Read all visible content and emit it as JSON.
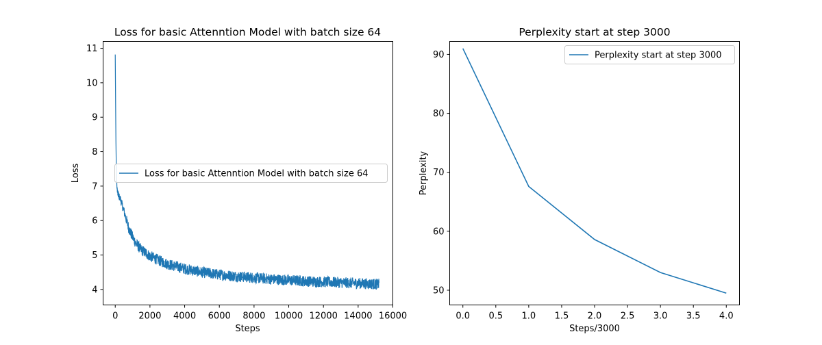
{
  "chart_data": [
    {
      "type": "line",
      "title": "Loss for basic Attenntion Model with batch size 64",
      "xlabel": "Steps",
      "ylabel": "Loss",
      "xlim": [
        -700,
        16000
      ],
      "ylim": [
        3.55,
        11.2
      ],
      "xticks": [
        0,
        2000,
        4000,
        6000,
        8000,
        10000,
        12000,
        14000,
        16000
      ],
      "yticks": [
        4,
        5,
        6,
        7,
        8,
        9,
        10,
        11
      ],
      "grid": false,
      "legend_position": "center-right",
      "color": "#1f77b4",
      "series": [
        {
          "name": "Loss for basic Attenntion Model with batch size 64",
          "x": [
            0,
            20,
            40,
            60,
            80,
            100,
            150,
            200,
            300,
            400,
            500,
            600,
            700,
            800,
            1000,
            1200,
            1500,
            2000,
            2500,
            3000,
            4000,
            5000,
            6000,
            7000,
            8000,
            9000,
            10000,
            11000,
            12000,
            13000,
            14000,
            15200
          ],
          "values": [
            10.82,
            9.5,
            8.3,
            7.6,
            7.2,
            6.95,
            6.8,
            6.72,
            6.62,
            6.45,
            6.28,
            6.1,
            5.92,
            5.75,
            5.52,
            5.33,
            5.15,
            4.97,
            4.85,
            4.74,
            4.6,
            4.5,
            4.43,
            4.38,
            4.34,
            4.3,
            4.27,
            4.24,
            4.22,
            4.2,
            4.18,
            4.15
          ],
          "noise_band": [
            0,
            0,
            0,
            0,
            0,
            0.05,
            0.08,
            0.1,
            0.12,
            0.12,
            0.13,
            0.14,
            0.15,
            0.16,
            0.16,
            0.16,
            0.16,
            0.16,
            0.16,
            0.16,
            0.16,
            0.16,
            0.16,
            0.16,
            0.16,
            0.16,
            0.16,
            0.16,
            0.16,
            0.16,
            0.16,
            0.16
          ]
        }
      ]
    },
    {
      "type": "line",
      "title": "Perplexity start at step 3000",
      "xlabel": "Steps/3000",
      "ylabel": "Perplexity",
      "xlim": [
        -0.2,
        4.2
      ],
      "ylim": [
        47.5,
        92.2
      ],
      "xticks": [
        "0.0",
        "0.5",
        "1.0",
        "1.5",
        "2.0",
        "2.5",
        "3.0",
        "3.5",
        "4.0"
      ],
      "yticks": [
        50,
        60,
        70,
        80,
        90
      ],
      "grid": false,
      "legend_position": "top-right",
      "color": "#1f77b4",
      "series": [
        {
          "name": "Perplexity start at step 3000",
          "x": [
            0,
            1,
            2,
            3,
            4
          ],
          "values": [
            91.0,
            67.6,
            58.6,
            53.0,
            49.5
          ]
        }
      ]
    }
  ]
}
